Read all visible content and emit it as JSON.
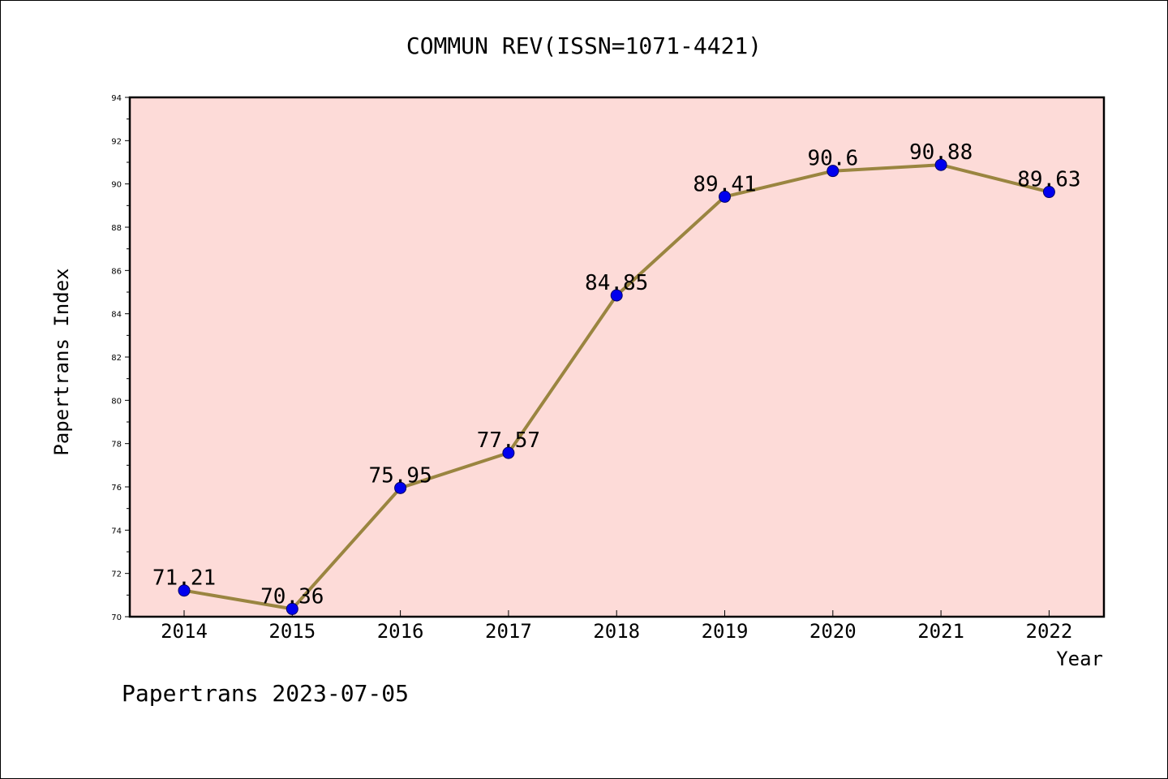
{
  "chart_data": {
    "type": "line",
    "title": "COMMUN REV(ISSN=1071-4421)",
    "xlabel": "Year",
    "ylabel": "Papertrans Index",
    "categories": [
      "2014",
      "2015",
      "2016",
      "2017",
      "2018",
      "2019",
      "2020",
      "2021",
      "2022"
    ],
    "values": [
      71.21,
      70.36,
      75.95,
      77.57,
      84.85,
      89.41,
      90.6,
      90.88,
      89.63
    ],
    "point_labels": [
      "71.21",
      "70.36",
      "75.95",
      "77.57",
      "84.85",
      "89.41",
      "90.6",
      "90.88",
      "89.63"
    ],
    "ylim": [
      70,
      94
    ],
    "yticks": [
      "70",
      "72",
      "74",
      "76",
      "78",
      "80",
      "82",
      "84",
      "86",
      "88",
      "90",
      "92",
      "94"
    ],
    "grid": false,
    "legend": "none",
    "colors": {
      "plot_background": "#fddbd8",
      "line": "#9a8540",
      "marker_fill": "#0000ee",
      "marker_edge": "#000066"
    }
  },
  "footer": {
    "watermark": "Papertrans 2023-07-05"
  }
}
